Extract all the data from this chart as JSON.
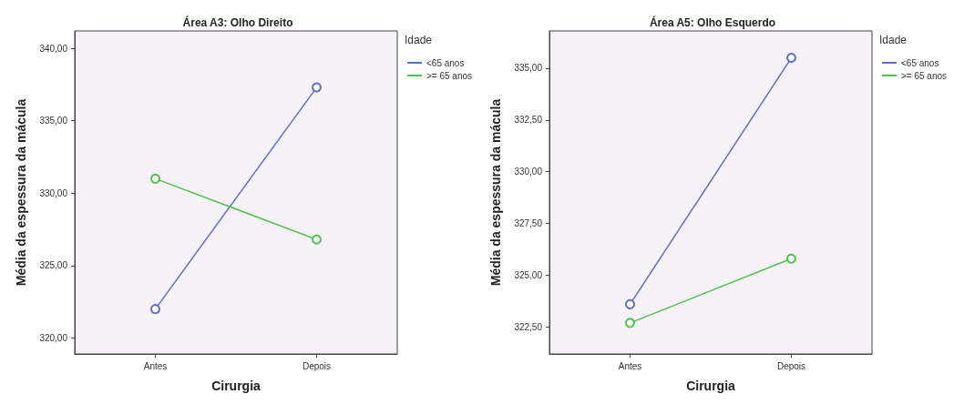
{
  "chart_data": [
    {
      "type": "line",
      "title": "Área A3: Olho Direito",
      "xlabel": "Cirurgia",
      "ylabel": "Média da espessura da mácula",
      "legend_title": "Idade",
      "categories": [
        "Antes",
        "Depois"
      ],
      "series": [
        {
          "name": "<65 anos",
          "color": "#5f6dc4",
          "values": [
            322.0,
            337.3
          ]
        },
        {
          "name": ">= 65 anos",
          "color": "#4cc24c",
          "values": [
            331.0,
            326.8
          ]
        }
      ],
      "ylim": [
        318.9,
        341.2
      ],
      "yticks": [
        {
          "value": 320,
          "label": "320,00"
        },
        {
          "value": 325,
          "label": "325,00"
        },
        {
          "value": 330,
          "label": "330,00"
        },
        {
          "value": 335,
          "label": "335,00"
        },
        {
          "value": 340,
          "label": "340,00"
        }
      ],
      "grid": false,
      "legend": "top right",
      "marker": "circle",
      "line_style": "solid"
    },
    {
      "type": "line",
      "title": "Área A5: Olho Esquerdo",
      "xlabel": "Cirurgia",
      "ylabel": "Média da espessura da mácula",
      "legend_title": "Idade",
      "categories": [
        "Antes",
        "Depois"
      ],
      "series": [
        {
          "name": "<65 anos",
          "color": "#5f6dc4",
          "values": [
            323.6,
            335.5
          ]
        },
        {
          "name": ">= 65 anos",
          "color": "#4cc24c",
          "values": [
            322.7,
            325.8
          ]
        }
      ],
      "ylim": [
        321.2,
        336.8
      ],
      "yticks": [
        {
          "value": 322.5,
          "label": "322,50"
        },
        {
          "value": 325,
          "label": "325,00"
        },
        {
          "value": 327.5,
          "label": "327,50"
        },
        {
          "value": 330,
          "label": "330,00"
        },
        {
          "value": 332.5,
          "label": "332,50"
        },
        {
          "value": 335,
          "label": "335,00"
        }
      ],
      "grid": false,
      "legend": "top right",
      "marker": "circle",
      "line_style": "solid"
    }
  ]
}
